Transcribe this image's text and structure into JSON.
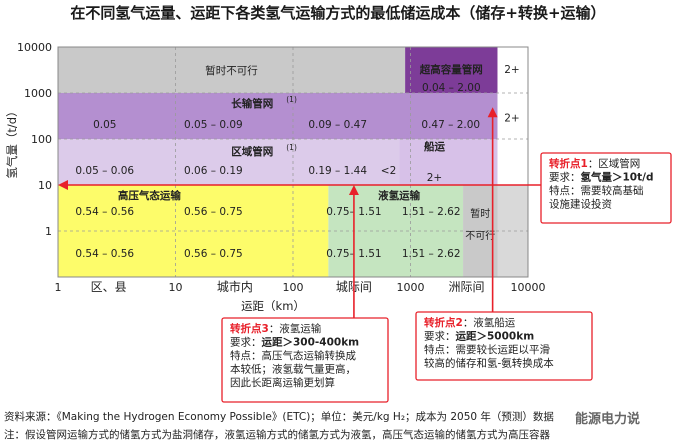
{
  "title": "在不同氢气运量、运距下各类氢气运输方式的最低储运成本（储存+转换+运输）",
  "chart_data": {
    "type": "heatmap",
    "title": "在不同氢气运量、运距下各类氢气运输方式的最低储运成本（储存+转换+运输）",
    "xlabel": "运距（km）",
    "ylabel": "氢气量（t/d）",
    "x_scale": "log",
    "y_scale": "log",
    "xlim": [
      1,
      10000
    ],
    "ylim": [
      0.1,
      10000
    ],
    "x_ticks": [
      "1",
      "10",
      "100",
      "1000",
      "10000"
    ],
    "y_ticks": [
      "0.1",
      "1",
      "10",
      "100",
      "1000",
      "10000"
    ],
    "x_region_labels": [
      "区、县",
      "城市内",
      "城际间",
      "洲际间"
    ],
    "grid": true,
    "regions": [
      {
        "label": "暂时不可行",
        "x": [
          1,
          900
        ],
        "y": [
          1000,
          10000
        ],
        "color": "#c9c9c9"
      },
      {
        "label": "超高容量管网",
        "sup": "",
        "x": [
          900,
          5500
        ],
        "y": [
          1000,
          10000
        ],
        "cost": "0.04 – 2.00",
        "color": "#7d3c98"
      },
      {
        "label": "长输管网",
        "sup": "(1)",
        "x": [
          1,
          5500
        ],
        "y": [
          100,
          1000
        ],
        "costs": [
          {
            "x": 2.5,
            "v": "0.05"
          },
          {
            "x": 21,
            "v": "0.05 – 0.09"
          },
          {
            "x": 240,
            "v": "0.09 – 0.47"
          },
          {
            "x": 2200,
            "v": "0.47 – 2.00"
          }
        ],
        "color": "#b48fd0"
      },
      {
        "label": "区域管网",
        "sup": "(1)",
        "x": [
          1,
          800
        ],
        "y": [
          10,
          100
        ],
        "costs": [
          {
            "x": 2.5,
            "v": "0.05 – 0.06"
          },
          {
            "x": 21,
            "v": "0.06 – 0.19"
          },
          {
            "x": 240,
            "v": "0.19 – 1.44"
          },
          {
            "x": 650,
            "v": "<2"
          }
        ],
        "color": "#dccbea"
      },
      {
        "label": "船运",
        "x": [
          800,
          5500
        ],
        "y": [
          10,
          100
        ],
        "cost": "2+",
        "color": "#d7c1e8"
      },
      {
        "label": "高压气态运输",
        "x": [
          1,
          200
        ],
        "y": [
          0.1,
          10
        ],
        "costs": [
          {
            "x": 2.5,
            "v": "0.54 – 0.56"
          },
          {
            "x": 21,
            "v": "0.56 – 0.75"
          }
        ],
        "color": "#fdfc6a"
      },
      {
        "label": "液氢运输",
        "x": [
          200,
          2800
        ],
        "y": [
          0.1,
          10
        ],
        "costs": [
          {
            "x": 330,
            "v": "0.75– 1.51"
          },
          {
            "x": 1500,
            "v": "1.51 – 2.62"
          }
        ],
        "color": "#c5e5c0"
      },
      {
        "label": "暂时不可行",
        "x": [
          2800,
          5500
        ],
        "y": [
          0.1,
          10
        ],
        "color": "#c9c9c9"
      }
    ],
    "right_strip_labels": [
      "2+",
      "2+"
    ],
    "annotations": [
      {
        "label": "转折点1",
        "topic": "区域管网",
        "req_label": "要求：",
        "req": "氢气量＞10t/d",
        "feat_label": "特点：",
        "feat": [
          "需要较高基础",
          "设施建设投资"
        ]
      },
      {
        "label": "转折点2",
        "topic": "液氢船运",
        "req_label": "要求：",
        "req": "运距＞5000km",
        "feat_label": "特点：",
        "feat": [
          "需要较长运距以平滑",
          "较高的储存和氢-氨转换成本"
        ]
      },
      {
        "label": "转折点3",
        "topic": "液氢运输",
        "req_label": "要求：",
        "req": "运距＞300-400km",
        "feat_label": "特点：",
        "feat": [
          "高压气态运输转换成",
          "本较低；液氢载气量更高，",
          "因此长距离运输更划算"
        ]
      }
    ]
  },
  "footnotes": [
    "资料来源：《Making the Hydrogen Economy Possible》(ETC)；单位：美元/kg H₂；成本为 2050 年（预测）数据",
    "注：假设管网运输方式的储氢方式为盐洞储存，液氢运输方式的储氢方式为液氢，高压气态运输的储氢方式为高压容器"
  ],
  "watermark": "能源电力说",
  "colors": {
    "accent_red": "#e8202a",
    "grid": "#9a9a9a"
  }
}
